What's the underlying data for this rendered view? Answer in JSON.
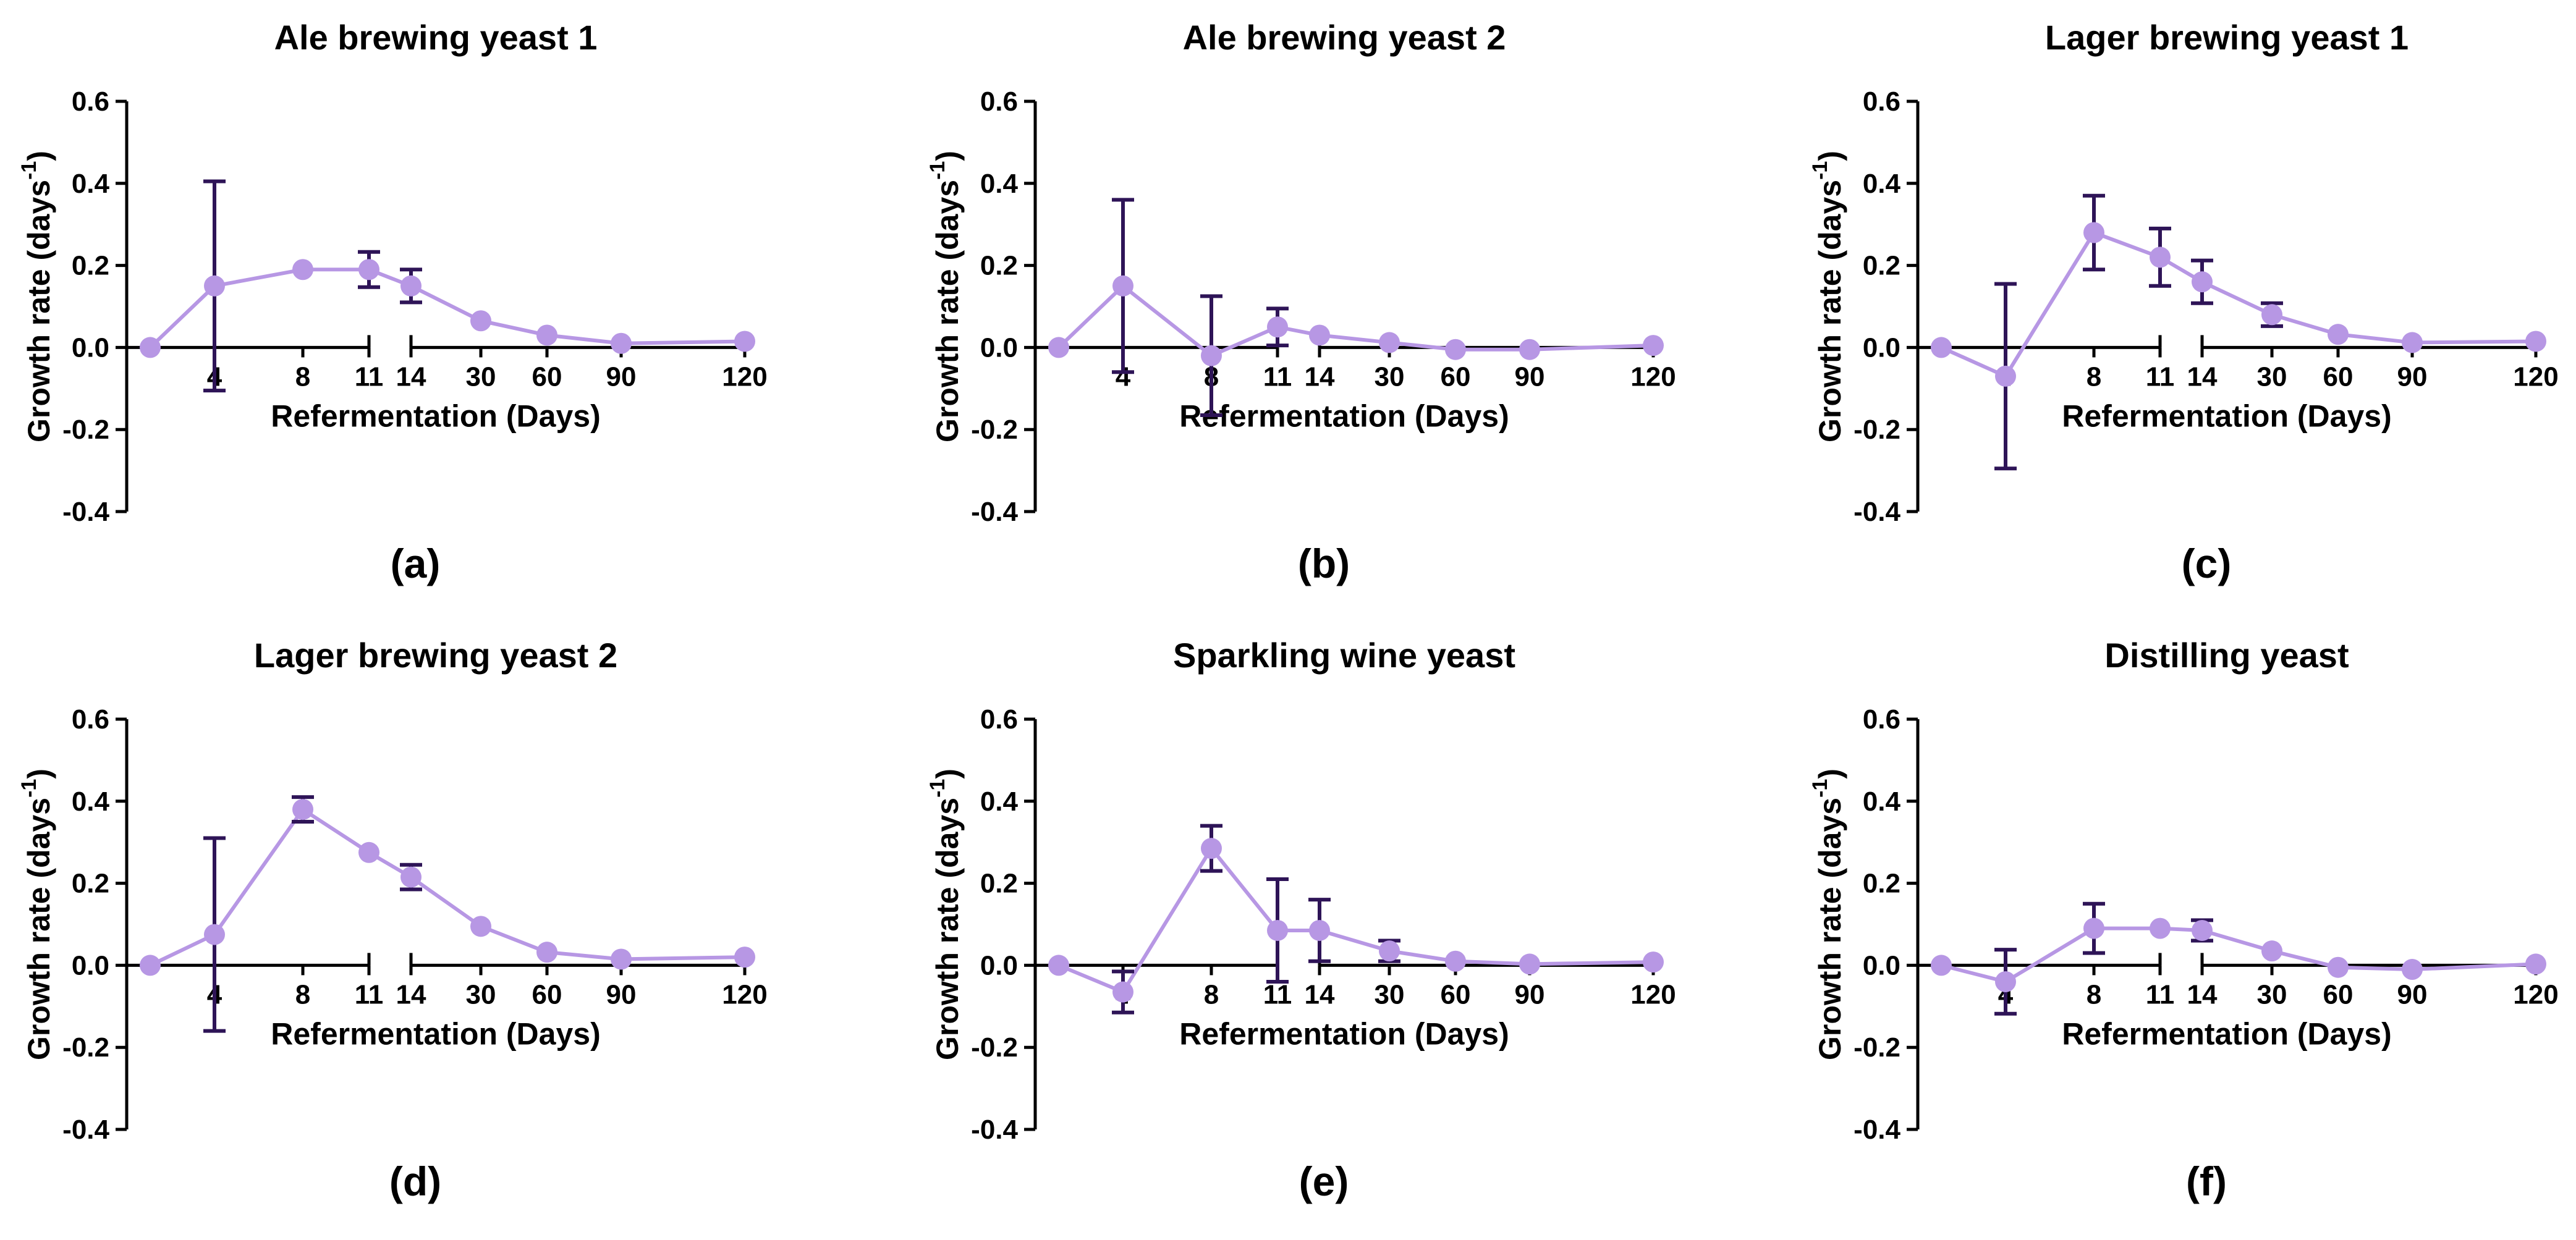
{
  "colors": {
    "marker": "#b797e4",
    "errorbar": "#2e1457",
    "axis": "#000000"
  },
  "chart_data": [
    {
      "type": "line",
      "panel_label": "(a)",
      "title": "Ale brewing yeast 1",
      "xlabel": "Refermentation (Days)",
      "ylabel": "Growth rate (days",
      "ylabel_sup": "-1",
      "ylabel_end": ")",
      "x_ticks": [
        "4",
        "8",
        "11",
        "14",
        "30",
        "60",
        "90",
        "120"
      ],
      "y_ticks": [
        "0.6",
        "0.4",
        "0.2",
        "0.0",
        "-0.2",
        "-0.4"
      ],
      "ylim": [
        -0.4,
        0.6
      ],
      "x": [
        0,
        4,
        8,
        11,
        14,
        30,
        60,
        90,
        120
      ],
      "values": [
        0.0,
        0.15,
        0.19,
        0.19,
        0.15,
        0.065,
        0.03,
        0.01,
        0.015
      ],
      "errors": [
        0,
        0.255,
        0,
        0.043,
        0.04,
        0,
        0,
        0,
        0
      ]
    },
    {
      "type": "line",
      "panel_label": "(b)",
      "title": "Ale brewing yeast 2",
      "xlabel": "Refermentation (Days)",
      "ylabel": "Growth rate (days",
      "ylabel_sup": "-1",
      "ylabel_end": ")",
      "x_ticks": [
        "4",
        "8",
        "11",
        "14",
        "30",
        "60",
        "90",
        "120"
      ],
      "y_ticks": [
        "0.6",
        "0.4",
        "0.2",
        "0.0",
        "-0.2",
        "-0.4"
      ],
      "ylim": [
        -0.4,
        0.6
      ],
      "x": [
        0,
        4,
        8,
        11,
        14,
        30,
        60,
        90,
        120
      ],
      "values": [
        0.0,
        0.15,
        -0.02,
        0.05,
        0.03,
        0.012,
        -0.005,
        -0.005,
        0.005
      ],
      "errors": [
        0,
        0.21,
        0.145,
        0.045,
        0,
        0,
        0,
        0,
        0
      ]
    },
    {
      "type": "line",
      "panel_label": "(c)",
      "title": "Lager brewing yeast 1",
      "xlabel": "Refermentation (Days)",
      "ylabel": "Growth rate (days",
      "ylabel_sup": "-1",
      "ylabel_end": ")",
      "x_ticks": [
        "4",
        "8",
        "11",
        "14",
        "30",
        "60",
        "90",
        "120"
      ],
      "y_ticks": [
        "0.6",
        "0.4",
        "0.2",
        "0.0",
        "-0.2",
        "-0.4"
      ],
      "ylim": [
        -0.4,
        0.6
      ],
      "x": [
        0,
        4,
        8,
        11,
        14,
        30,
        60,
        90,
        120
      ],
      "values": [
        0.0,
        -0.07,
        0.28,
        0.22,
        0.16,
        0.08,
        0.032,
        0.012,
        0.015
      ],
      "errors": [
        0,
        0.225,
        0.09,
        0.07,
        0.052,
        0.028,
        0,
        0,
        0
      ]
    },
    {
      "type": "line",
      "panel_label": "(d)",
      "title": "Lager brewing yeast 2",
      "xlabel": "Refermentation (Days)",
      "ylabel": "Growth rate (days",
      "ylabel_sup": "-1",
      "ylabel_end": ")",
      "x_ticks": [
        "4",
        "8",
        "11",
        "14",
        "30",
        "60",
        "90",
        "120"
      ],
      "y_ticks": [
        "0.6",
        "0.4",
        "0.2",
        "0.0",
        "-0.2",
        "-0.4"
      ],
      "ylim": [
        -0.4,
        0.6
      ],
      "x": [
        0,
        4,
        8,
        11,
        14,
        30,
        60,
        90,
        120
      ],
      "values": [
        0.0,
        0.075,
        0.38,
        0.275,
        0.215,
        0.095,
        0.032,
        0.015,
        0.02
      ],
      "errors": [
        0,
        0.235,
        0.03,
        0,
        0.03,
        0,
        0,
        0,
        0
      ]
    },
    {
      "type": "line",
      "panel_label": "(e)",
      "title": "Sparkling wine yeast",
      "xlabel": "Refermentation (Days)",
      "ylabel": "Growth rate (days",
      "ylabel_sup": "-1",
      "ylabel_end": ")",
      "x_ticks": [
        "4",
        "8",
        "11",
        "14",
        "30",
        "60",
        "90",
        "120"
      ],
      "y_ticks": [
        "0.6",
        "0.4",
        "0.2",
        "0.0",
        "-0.2",
        "-0.4"
      ],
      "ylim": [
        -0.4,
        0.6
      ],
      "x": [
        0,
        4,
        8,
        11,
        14,
        30,
        60,
        90,
        120
      ],
      "values": [
        0.0,
        -0.065,
        0.285,
        0.085,
        0.085,
        0.035,
        0.01,
        0.003,
        0.008
      ],
      "errors": [
        0,
        0.05,
        0.055,
        0.125,
        0.075,
        0.025,
        0,
        0,
        0
      ]
    },
    {
      "type": "line",
      "panel_label": "(f)",
      "title": "Distilling yeast",
      "xlabel": "Refermentation (Days)",
      "ylabel": "Growth rate (days",
      "ylabel_sup": "-1",
      "ylabel_end": ")",
      "x_ticks": [
        "4",
        "8",
        "11",
        "14",
        "30",
        "60",
        "90",
        "120"
      ],
      "y_ticks": [
        "0.6",
        "0.4",
        "0.2",
        "0.0",
        "-0.2",
        "-0.4"
      ],
      "ylim": [
        -0.4,
        0.6
      ],
      "x": [
        0,
        4,
        8,
        11,
        14,
        30,
        60,
        90,
        120
      ],
      "values": [
        0.0,
        -0.04,
        0.09,
        0.09,
        0.085,
        0.035,
        -0.005,
        -0.01,
        0.003
      ],
      "errors": [
        0,
        0.078,
        0.06,
        0,
        0.025,
        0,
        0,
        0,
        0
      ]
    }
  ]
}
